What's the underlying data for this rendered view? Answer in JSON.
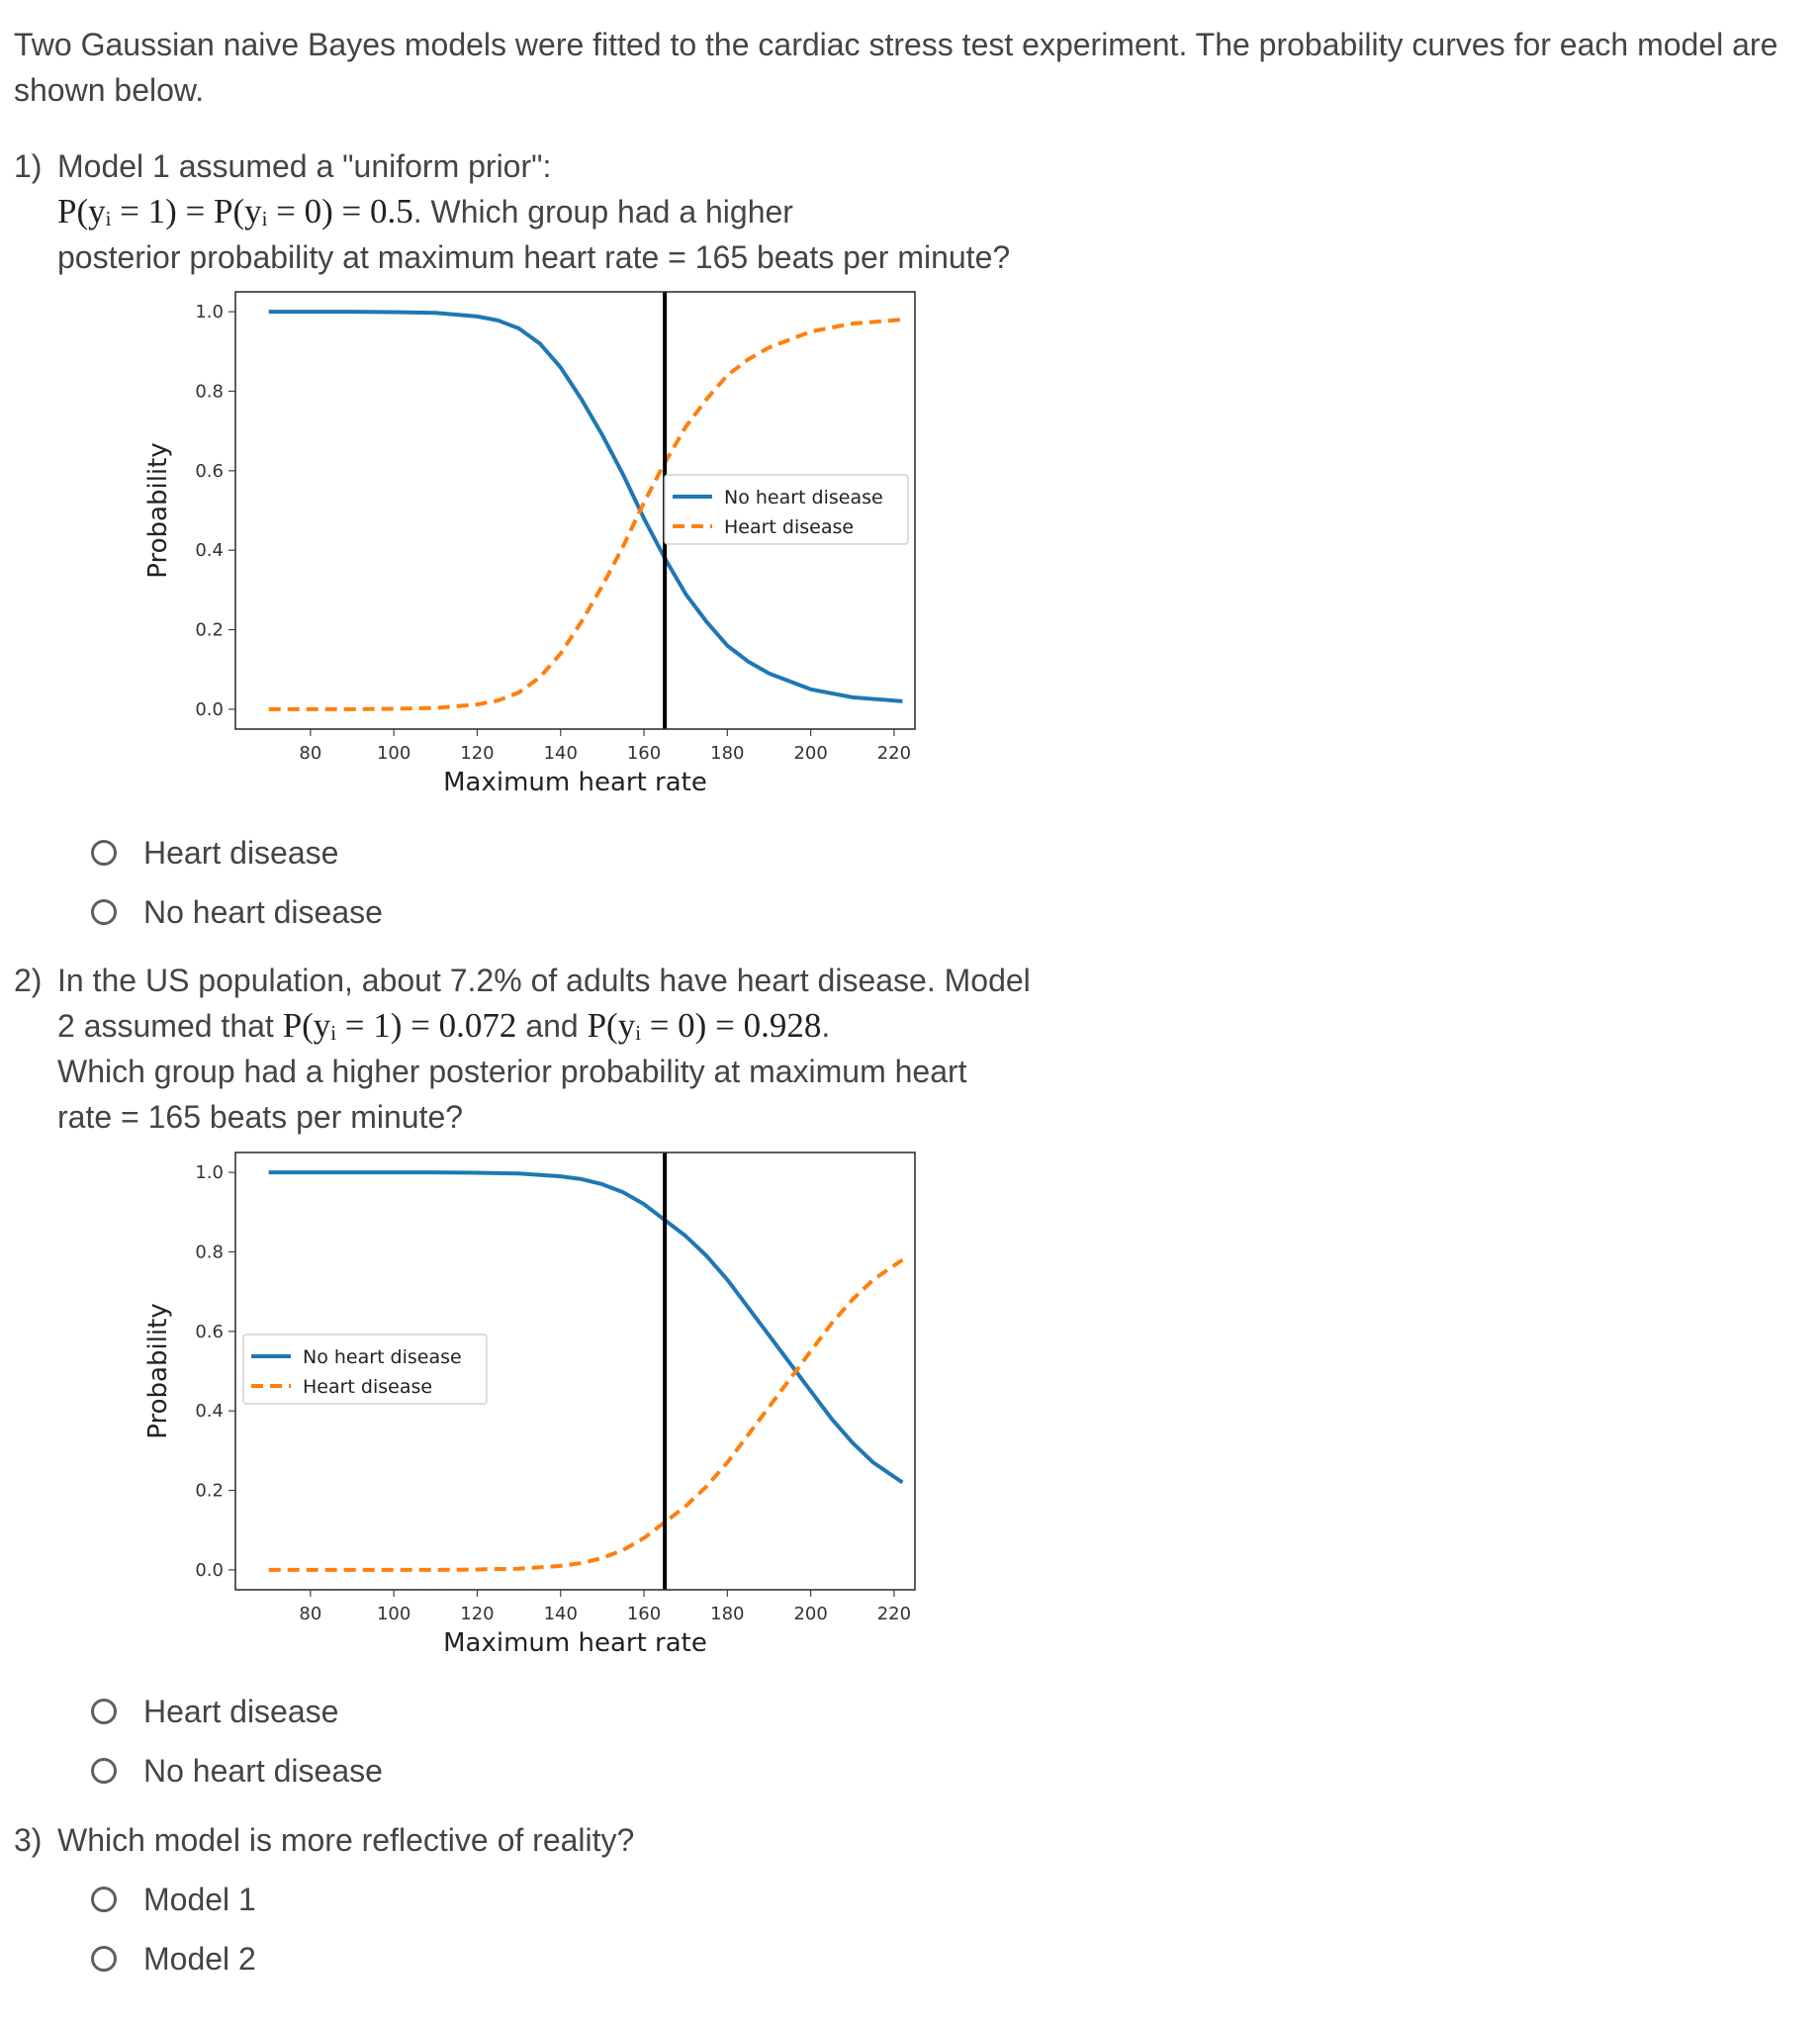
{
  "intro": "Two Gaussian naive Bayes models were fitted to the cardiac stress test experiment. The probability curves for each model are shown below.",
  "questions": [
    {
      "number": "1)",
      "text_a": "Model 1 assumed a \"uniform prior\":",
      "math": "P(yᵢ = 1) = P(yᵢ = 0) = 0.5",
      "text_b": ". Which group had a higher",
      "text_c": "posterior probability at maximum heart rate = 165 beats per minute?",
      "options": [
        "Heart disease",
        "No heart disease"
      ]
    },
    {
      "number": "2)",
      "text_a": "In the US population, about 7.2% of adults have heart disease. Model",
      "text_b1": "2 assumed that",
      "math1": "P(yᵢ = 1) = 0.072",
      "and": "and",
      "math2": "P(yᵢ = 0) = 0.928",
      "period": ".",
      "text_c": "Which group had a higher posterior probability at maximum heart",
      "text_d": "rate = 165 beats per minute?",
      "options": [
        "Heart disease",
        "No heart disease"
      ]
    },
    {
      "number": "3)",
      "text_a": "Which model is more reflective of reality?",
      "options": [
        "Model 1",
        "Model 2"
      ]
    }
  ],
  "chart_data": [
    {
      "type": "line",
      "title": "",
      "xlabel": "Maximum heart rate",
      "ylabel": "Probability",
      "xlim": [
        62,
        225
      ],
      "ylim": [
        -0.05,
        1.05
      ],
      "xticks": [
        80,
        100,
        120,
        140,
        160,
        180,
        200,
        220
      ],
      "yticks": [
        "0.0",
        "0.2",
        "0.4",
        "0.6",
        "0.8",
        "1.0"
      ],
      "vline_x": 165,
      "legend_position": "center-right",
      "series": [
        {
          "name": "No heart disease",
          "color": "#1f77b4",
          "style": "solid",
          "x": [
            70,
            80,
            90,
            100,
            110,
            120,
            125,
            130,
            135,
            140,
            145,
            150,
            155,
            160,
            165,
            170,
            175,
            180,
            185,
            190,
            200,
            210,
            222
          ],
          "y": [
            1.0,
            1.0,
            1.0,
            0.999,
            0.997,
            0.988,
            0.978,
            0.958,
            0.92,
            0.86,
            0.78,
            0.69,
            0.59,
            0.48,
            0.38,
            0.29,
            0.22,
            0.16,
            0.12,
            0.09,
            0.05,
            0.03,
            0.02
          ]
        },
        {
          "name": "Heart disease",
          "color": "#ff7f0e",
          "style": "dashed",
          "x": [
            70,
            80,
            90,
            100,
            110,
            120,
            125,
            130,
            135,
            140,
            145,
            150,
            155,
            160,
            165,
            170,
            175,
            180,
            185,
            190,
            200,
            210,
            222
          ],
          "y": [
            0.0,
            0.0,
            0.0,
            0.001,
            0.003,
            0.012,
            0.022,
            0.042,
            0.08,
            0.14,
            0.22,
            0.31,
            0.41,
            0.52,
            0.62,
            0.71,
            0.78,
            0.84,
            0.88,
            0.91,
            0.95,
            0.97,
            0.98
          ]
        }
      ]
    },
    {
      "type": "line",
      "title": "",
      "xlabel": "Maximum heart rate",
      "ylabel": "Probability",
      "xlim": [
        62,
        225
      ],
      "ylim": [
        -0.05,
        1.05
      ],
      "xticks": [
        80,
        100,
        120,
        140,
        160,
        180,
        200,
        220
      ],
      "yticks": [
        "0.0",
        "0.2",
        "0.4",
        "0.6",
        "0.8",
        "1.0"
      ],
      "vline_x": 165,
      "legend_position": "center-left",
      "series": [
        {
          "name": "No heart disease",
          "color": "#1f77b4",
          "style": "solid",
          "x": [
            70,
            80,
            90,
            100,
            110,
            120,
            130,
            140,
            145,
            150,
            155,
            160,
            165,
            170,
            175,
            180,
            185,
            190,
            195,
            200,
            205,
            210,
            215,
            222
          ],
          "y": [
            1.0,
            1.0,
            1.0,
            1.0,
            1.0,
            0.999,
            0.997,
            0.99,
            0.983,
            0.97,
            0.95,
            0.92,
            0.88,
            0.84,
            0.79,
            0.73,
            0.66,
            0.59,
            0.52,
            0.45,
            0.38,
            0.32,
            0.27,
            0.22
          ]
        },
        {
          "name": "Heart disease",
          "color": "#ff7f0e",
          "style": "dashed",
          "x": [
            70,
            80,
            90,
            100,
            110,
            120,
            130,
            140,
            145,
            150,
            155,
            160,
            165,
            170,
            175,
            180,
            185,
            190,
            195,
            200,
            205,
            210,
            215,
            222
          ],
          "y": [
            0.0,
            0.0,
            0.0,
            0.0,
            0.0,
            0.001,
            0.003,
            0.01,
            0.017,
            0.03,
            0.05,
            0.08,
            0.12,
            0.16,
            0.21,
            0.27,
            0.34,
            0.41,
            0.48,
            0.55,
            0.62,
            0.68,
            0.73,
            0.78
          ]
        }
      ]
    }
  ]
}
